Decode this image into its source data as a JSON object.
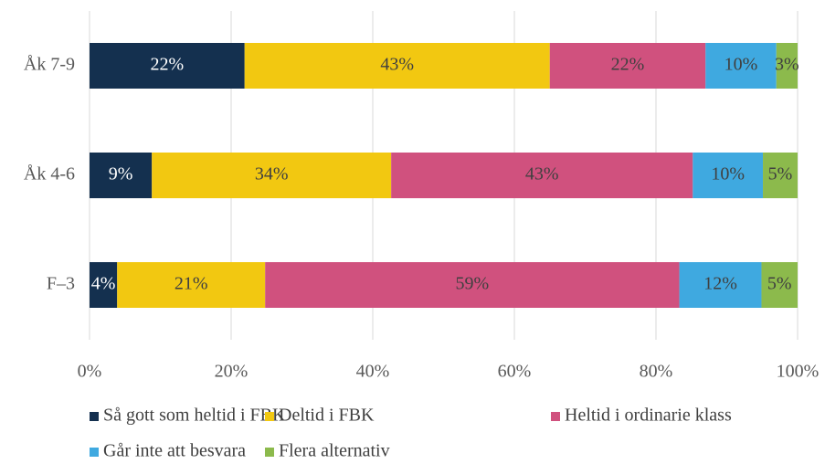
{
  "chart_data": {
    "type": "stacked-bar-horizontal",
    "categories": [
      "Åk 7-9",
      "Åk 4-6",
      "F–3"
    ],
    "series": [
      {
        "name": "Så gott som heltid i FBK",
        "color": "#14304f",
        "values": [
          21.9,
          8.8,
          3.9
        ],
        "value_labels": [
          "22%",
          "9%",
          "4%"
        ]
      },
      {
        "name": "Deltid i FBK",
        "color": "#f2c811",
        "values": [
          43.1,
          33.8,
          20.9
        ],
        "value_labels": [
          "43%",
          "34%",
          "21%"
        ]
      },
      {
        "name": "Heltid i ordinarie klass",
        "color": "#d0517e",
        "values": [
          22.0,
          42.6,
          58.5
        ],
        "value_labels": [
          "22%",
          "43%",
          "59%"
        ]
      },
      {
        "name": "Går inte att besvara",
        "color": "#3fa9e0",
        "values": [
          10.0,
          9.9,
          11.6
        ],
        "value_labels": [
          "10%",
          "10%",
          "12%"
        ]
      },
      {
        "name": "Flera alternativ",
        "color": "#8cba4c",
        "values": [
          3.0,
          4.9,
          5.1
        ],
        "value_labels": [
          "3%",
          "5%",
          "5%"
        ]
      }
    ],
    "xlim": [
      0,
      100
    ],
    "xticks": [
      {
        "value": 0,
        "label": "0%"
      },
      {
        "value": 20,
        "label": "20%"
      },
      {
        "value": 40,
        "label": "40%"
      },
      {
        "value": 60,
        "label": "60%"
      },
      {
        "value": 80,
        "label": "80%"
      },
      {
        "value": 100,
        "label": "100%"
      }
    ],
    "grid": true,
    "legend": "bottom"
  }
}
